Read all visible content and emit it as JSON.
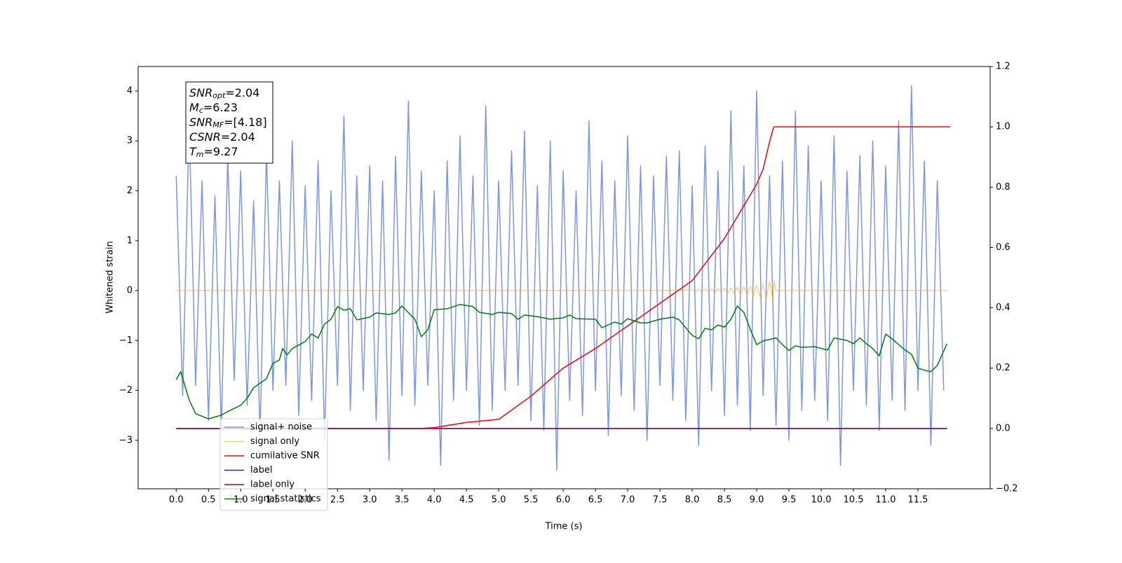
{
  "chart_data": {
    "type": "line",
    "xlabel": "Time (s)",
    "ylabel": "Whitened strain",
    "xlim": [
      -0.59,
      12.62
    ],
    "ylim": [
      -3.97,
      4.49
    ],
    "y2lim": [
      -0.2,
      1.2
    ],
    "xticks": [
      {
        "value": 0,
        "label": "0.0"
      },
      {
        "value": 0.5,
        "label": "0.5"
      },
      {
        "value": 1,
        "label": "1.0"
      },
      {
        "value": 1.5,
        "label": "1.5"
      },
      {
        "value": 2,
        "label": "2.0"
      },
      {
        "value": 2.5,
        "label": "2.5"
      },
      {
        "value": 3,
        "label": "3.0"
      },
      {
        "value": 3.5,
        "label": "3.5"
      },
      {
        "value": 4,
        "label": "4.0"
      },
      {
        "value": 4.5,
        "label": "4.5"
      },
      {
        "value": 5,
        "label": "5.0"
      },
      {
        "value": 5.5,
        "label": "5.5"
      },
      {
        "value": 6,
        "label": "6.0"
      },
      {
        "value": 6.5,
        "label": "6.5"
      },
      {
        "value": 7,
        "label": "7.0"
      },
      {
        "value": 7.5,
        "label": "7.5"
      },
      {
        "value": 8,
        "label": "8.0"
      },
      {
        "value": 8.5,
        "label": "8.5"
      },
      {
        "value": 9,
        "label": "9.0"
      },
      {
        "value": 9.5,
        "label": "9.5"
      },
      {
        "value": 10,
        "label": "10.0"
      },
      {
        "value": 10.5,
        "label": "10.5"
      },
      {
        "value": 11,
        "label": "11.0"
      },
      {
        "value": 11.5,
        "label": "11.5"
      }
    ],
    "yticks": [
      {
        "value": -3,
        "label": "−3"
      },
      {
        "value": -2,
        "label": "−2"
      },
      {
        "value": -1,
        "label": "−1"
      },
      0,
      1,
      2,
      3,
      4
    ],
    "y2ticks": [
      {
        "value": -0.2,
        "label": "−0.2"
      },
      {
        "value": 0,
        "label": "0.0"
      },
      0.2,
      0.4,
      0.6,
      0.8,
      {
        "value": 1,
        "label": "1.0"
      },
      1.2
    ],
    "grid": false,
    "annotation": [
      {
        "symbol": "SNR",
        "subscript": "opt",
        "text": "=2.04"
      },
      {
        "symbol": "M",
        "subscript": "c",
        "text": "=6.23"
      },
      {
        "symbol": "SNR",
        "subscript": "MF",
        "text": "=[4.18]"
      },
      {
        "symbol": "CSNR",
        "text": "=2.04"
      },
      {
        "symbol": "T",
        "subscript": "m",
        "text": "=9.27"
      }
    ],
    "series": [
      {
        "name": "signal+ noise",
        "color": "royalblue",
        "alpha": 0.7,
        "x": [
          0,
          0.1,
          0.2,
          0.3,
          0.4,
          0.5,
          0.6,
          0.7,
          0.8,
          0.9,
          1,
          1.1,
          1.2,
          1.3,
          1.4,
          1.5,
          1.6,
          1.7,
          1.8,
          1.9,
          2,
          2.1,
          2.2,
          2.3,
          2.4,
          2.5,
          2.6,
          2.7,
          2.8,
          2.9,
          3,
          3.1,
          3.2,
          3.3,
          3.4,
          3.5,
          3.6,
          3.7,
          3.8,
          3.9,
          4,
          4.1,
          4.2,
          4.3,
          4.4,
          4.5,
          4.6,
          4.7,
          4.8,
          4.9,
          5,
          5.1,
          5.2,
          5.3,
          5.4,
          5.5,
          5.6,
          5.7,
          5.8,
          5.9,
          6,
          6.1,
          6.2,
          6.3,
          6.4,
          6.5,
          6.6,
          6.7,
          6.8,
          6.9,
          7,
          7.1,
          7.2,
          7.3,
          7.4,
          7.5,
          7.6,
          7.7,
          7.8,
          7.9,
          8,
          8.1,
          8.2,
          8.3,
          8.4,
          8.5,
          8.6,
          8.7,
          8.8,
          8.9,
          9,
          9.1,
          9.2,
          9.3,
          9.4,
          9.5,
          9.6,
          9.7,
          9.8,
          9.9,
          10,
          10.1,
          10.2,
          10.3,
          10.4,
          10.5,
          10.6,
          10.7,
          10.8,
          10.9,
          11,
          11.1,
          11.2,
          11.3,
          11.4,
          11.5,
          11.6,
          11.7,
          11.8,
          11.9
        ],
        "values": [
          2.3,
          -2.1,
          3.4,
          -1.9,
          2.2,
          -2.6,
          1.9,
          -2.8,
          2.7,
          -1.8,
          2.4,
          -2.3,
          1.8,
          -2.9,
          2.8,
          -2.0,
          2.2,
          -1.9,
          3.0,
          -2.5,
          2.1,
          -2.2,
          2.6,
          -3.0,
          2.0,
          -1.9,
          3.5,
          -2.4,
          2.3,
          -2.0,
          2.5,
          -2.6,
          2.2,
          -3.4,
          2.7,
          -2.1,
          3.8,
          -2.3,
          2.4,
          -1.9,
          2.0,
          -3.5,
          2.6,
          -2.2,
          3.1,
          -2.0,
          2.3,
          -2.7,
          3.7,
          -2.4,
          2.2,
          -2.0,
          2.8,
          -1.9,
          3.2,
          -2.6,
          2.1,
          -2.8,
          3.0,
          -3.6,
          2.4,
          -2.2,
          2.0,
          -2.5,
          3.4,
          -2.0,
          2.6,
          -2.9,
          2.2,
          -2.1,
          3.1,
          -2.4,
          2.5,
          -3.0,
          2.3,
          -1.9,
          2.7,
          -2.2,
          2.8,
          -2.6,
          2.1,
          -3.1,
          2.9,
          -2.0,
          2.4,
          -2.5,
          3.6,
          -2.3,
          2.5,
          -2.8,
          4.0,
          -2.1,
          2.3,
          -2.7,
          2.6,
          -3.0,
          3.6,
          -2.4,
          2.9,
          -2.2,
          2.2,
          -2.6,
          3.1,
          -3.5,
          2.4,
          -2.0,
          2.7,
          -2.3,
          3.0,
          -2.8,
          2.5,
          -2.2,
          3.4,
          -2.4,
          4.1,
          -2.0,
          2.6,
          -3.1,
          2.2,
          -2.0
        ]
      },
      {
        "name": "signal only",
        "color": "orange",
        "alpha": 0.5,
        "x": [
          0,
          6,
          7.5,
          8,
          8.05,
          8.1,
          8.15,
          8.2,
          8.25,
          8.3,
          8.35,
          8.4,
          8.45,
          8.5,
          8.55,
          8.6,
          8.65,
          8.7,
          8.75,
          8.8,
          8.85,
          8.9,
          8.95,
          9,
          9.05,
          9.1,
          9.15,
          9.2,
          9.25,
          9.27,
          9.3,
          11.95
        ],
        "values": [
          0,
          0,
          0,
          0.02,
          -0.02,
          0.025,
          -0.025,
          0.03,
          -0.03,
          0.035,
          -0.035,
          0.04,
          -0.04,
          0.045,
          -0.05,
          0.055,
          -0.06,
          0.065,
          -0.07,
          0.08,
          -0.085,
          0.09,
          -0.1,
          0.11,
          -0.12,
          0.14,
          -0.16,
          0.18,
          -0.2,
          0.2,
          0,
          0
        ]
      },
      {
        "name": "cumilative SNR",
        "color": "red",
        "axis": "y2",
        "x": [
          0,
          3.8,
          4,
          4.5,
          5,
          5.5,
          6,
          6.5,
          7,
          7.5,
          8,
          8.5,
          9,
          9.1,
          9.2,
          9.25,
          9.27,
          12
        ],
        "values": [
          0,
          0,
          0.003,
          0.02,
          0.03,
          0.107,
          0.2,
          0.265,
          0.34,
          0.415,
          0.49,
          0.63,
          0.81,
          0.86,
          0.95,
          0.99,
          1,
          1
        ]
      },
      {
        "name": "label",
        "color": "purple",
        "axis": "y2",
        "x": [
          0,
          11.95
        ],
        "values": [
          0,
          0
        ]
      },
      {
        "name": "label only",
        "color": "purple",
        "axis": "y2",
        "x": [
          0,
          11.95
        ],
        "values": [
          0,
          0
        ]
      },
      {
        "name": "signal statistics",
        "color": "green",
        "axis": "y2",
        "x": [
          0,
          0.07,
          0.2,
          0.3,
          0.5,
          0.7,
          0.8,
          1,
          1.1,
          1.2,
          1.4,
          1.5,
          1.6,
          1.65,
          1.72,
          1.8,
          2,
          2.1,
          2.2,
          2.3,
          2.4,
          2.5,
          2.6,
          2.7,
          2.8,
          3,
          3.1,
          3.3,
          3.4,
          3.5,
          3.7,
          3.8,
          3.9,
          4,
          4.2,
          4.4,
          4.6,
          4.7,
          4.9,
          5,
          5.2,
          5.3,
          5.4,
          5.6,
          5.8,
          6,
          6.1,
          6.2,
          6.5,
          6.6,
          6.8,
          6.9,
          7,
          7.2,
          7.3,
          7.5,
          7.7,
          7.8,
          7.9,
          8,
          8.1,
          8.2,
          8.3,
          8.4,
          8.5,
          8.6,
          8.7,
          8.8,
          8.9,
          9,
          9.1,
          9.3,
          9.4,
          9.5,
          9.6,
          9.7,
          9.9,
          10,
          10.1,
          10.2,
          10.4,
          10.5,
          10.6,
          10.7,
          10.8,
          10.9,
          11,
          11.1,
          11.3,
          11.4,
          11.5,
          11.6,
          11.7,
          11.8,
          11.95
        ],
        "values": [
          0.162,
          0.188,
          0.095,
          0.049,
          0.032,
          0.044,
          0.056,
          0.077,
          0.1,
          0.135,
          0.165,
          0.216,
          0.227,
          0.265,
          0.244,
          0.265,
          0.288,
          0.313,
          0.3,
          0.346,
          0.362,
          0.404,
          0.392,
          0.397,
          0.36,
          0.369,
          0.383,
          0.378,
          0.383,
          0.406,
          0.362,
          0.304,
          0.327,
          0.394,
          0.397,
          0.411,
          0.404,
          0.385,
          0.378,
          0.385,
          0.381,
          0.362,
          0.376,
          0.371,
          0.362,
          0.367,
          0.376,
          0.364,
          0.362,
          0.334,
          0.353,
          0.346,
          0.364,
          0.35,
          0.35,
          0.362,
          0.369,
          0.36,
          0.334,
          0.309,
          0.297,
          0.332,
          0.327,
          0.343,
          0.336,
          0.362,
          0.406,
          0.385,
          0.329,
          0.278,
          0.29,
          0.3,
          0.278,
          0.258,
          0.274,
          0.269,
          0.271,
          0.265,
          0.26,
          0.3,
          0.292,
          0.281,
          0.3,
          0.281,
          0.265,
          0.241,
          0.313,
          0.297,
          0.26,
          0.246,
          0.2,
          0.193,
          0.188,
          0.209,
          0.281
        ]
      }
    ]
  }
}
